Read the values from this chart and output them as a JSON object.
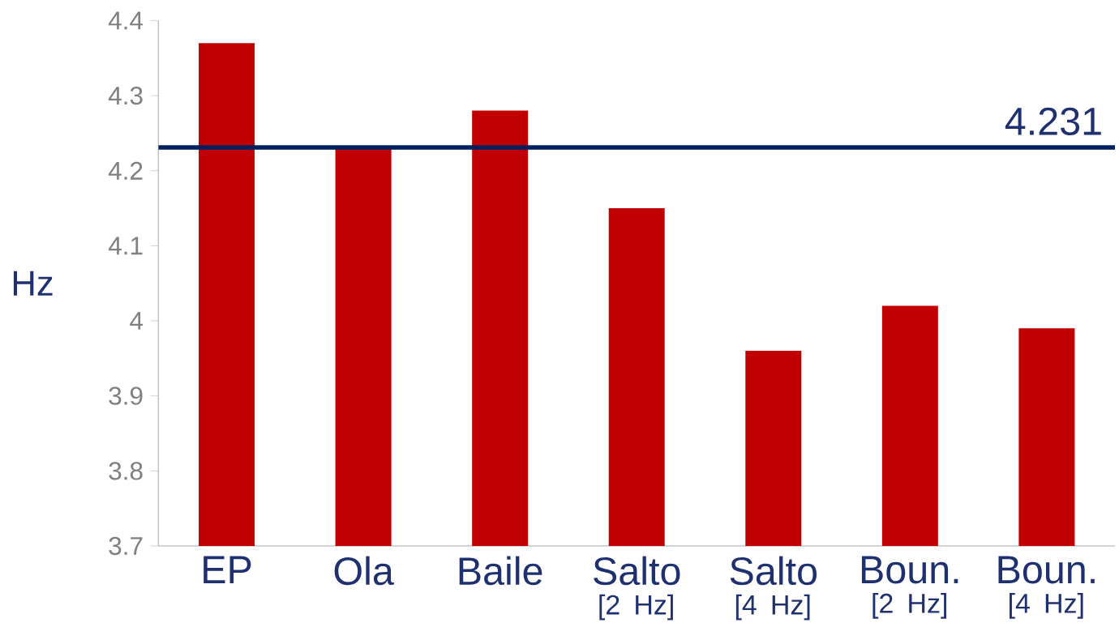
{
  "chart_data": {
    "type": "bar",
    "ylabel": "Hz",
    "categories": [
      "EP",
      "Ola",
      "Baile",
      "Salto $_{[2 Hz]}$",
      "Salto $_{[4 Hz]}$",
      "Boun. $_{[2 Hz]}$",
      "Boun. $_{[4 Hz]}$"
    ],
    "values": [
      4.37,
      4.23,
      4.28,
      4.15,
      3.96,
      4.02,
      3.99
    ],
    "color": "#c00000",
    "ylim": [
      3.7,
      4.4
    ],
    "yticks": [
      3.7,
      3.8,
      3.9,
      4,
      4.1,
      4.2,
      4.3,
      4.4
    ],
    "ref_lines": [
      {
        "axis": "y",
        "value": 4.231,
        "label": "4.231",
        "color": "#002060"
      }
    ]
  }
}
